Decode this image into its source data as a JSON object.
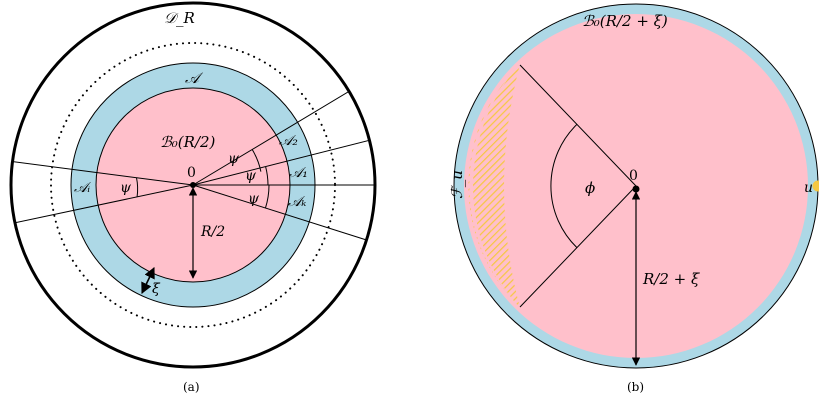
{
  "panel_a": {
    "outer_domain_label": "𝒟_R",
    "annulus_label": "𝒜",
    "inner_ball_label": "ℬ₀(R/2)",
    "center_label": "0",
    "psi_label": "ψ",
    "sector_labels": {
      "a1": "𝒜₁",
      "a2": "𝒜₂",
      "ai": "𝒜ᵢ",
      "ak": "𝒜ₖ"
    },
    "radius_label": "R/2",
    "width_label": "ξ",
    "caption": "(a)"
  },
  "panel_b": {
    "ball_label": "ℬ₀(R/2 + ξ)",
    "center_label": "0",
    "angle_label": "ϕ",
    "region_label": "ℱ_u",
    "radius_label": "R/2 + ξ",
    "point_label": "u",
    "caption": "(b)"
  },
  "colors": {
    "annulus": "#add8e6",
    "ball": "#ffc0cb",
    "hatch": "#f5c842",
    "point": "#f5c842",
    "stroke": "#000000"
  }
}
